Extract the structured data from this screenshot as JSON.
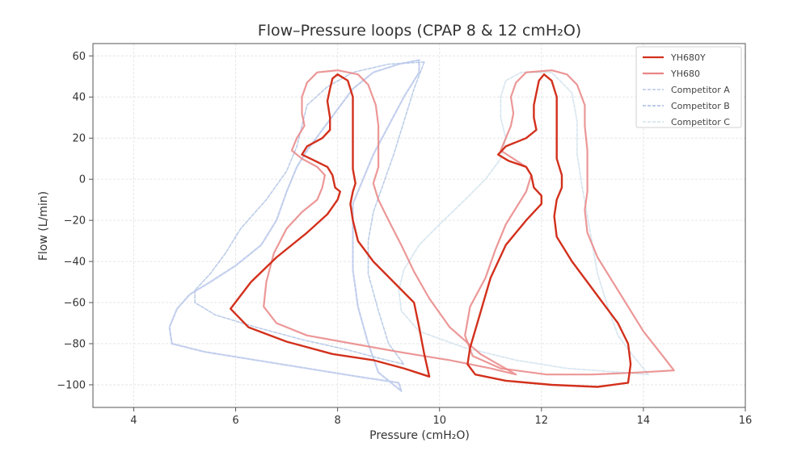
{
  "chart_data": {
    "type": "line",
    "title": "Flow–Pressure loops (CPAP 8 & 12 cmH₂O)",
    "xlabel": "Pressure (cmH₂O)",
    "ylabel": "Flow (L/min)",
    "xlim": [
      3.2,
      16.0
    ],
    "ylim": [
      -111,
      66
    ],
    "xticks": [
      4,
      6,
      8,
      10,
      12,
      14,
      16
    ],
    "yticks": [
      60,
      40,
      20,
      0,
      -20,
      -40,
      -60,
      -80,
      -100
    ],
    "grid": true,
    "legend_position": "top-right",
    "series": [
      {
        "name": "YH680Y",
        "color": "#d2301c",
        "style": "solid",
        "width": 2.4,
        "opacity": 1,
        "loops": [
          [
            [
              8.0,
              51
            ],
            [
              7.9,
              49
            ],
            [
              7.85,
              44
            ],
            [
              7.8,
              38
            ],
            [
              7.85,
              30
            ],
            [
              7.85,
              24
            ],
            [
              7.7,
              20
            ],
            [
              7.4,
              16
            ],
            [
              7.3,
              12
            ],
            [
              7.55,
              9
            ],
            [
              7.8,
              6
            ],
            [
              7.9,
              2
            ],
            [
              7.95,
              -4
            ],
            [
              8.05,
              -6
            ],
            [
              8.0,
              -10
            ],
            [
              7.8,
              -17
            ],
            [
              7.4,
              -26
            ],
            [
              6.8,
              -38
            ],
            [
              6.3,
              -50
            ],
            [
              5.9,
              -63
            ],
            [
              6.25,
              -72
            ],
            [
              7.0,
              -79
            ],
            [
              7.9,
              -85
            ],
            [
              8.7,
              -88
            ],
            [
              9.3,
              -92
            ],
            [
              9.8,
              -96
            ],
            [
              9.7,
              -85
            ],
            [
              9.6,
              -72
            ],
            [
              9.5,
              -60
            ],
            [
              9.1,
              -50
            ],
            [
              8.7,
              -40
            ],
            [
              8.4,
              -30
            ],
            [
              8.3,
              -20
            ],
            [
              8.25,
              -12
            ],
            [
              8.3,
              -6
            ],
            [
              8.35,
              -2
            ],
            [
              8.3,
              5
            ],
            [
              8.3,
              12
            ],
            [
              8.3,
              20
            ],
            [
              8.3,
              30
            ],
            [
              8.3,
              40
            ],
            [
              8.2,
              48
            ],
            [
              8.0,
              51
            ]
          ],
          [
            [
              12.05,
              51
            ],
            [
              11.95,
              48
            ],
            [
              11.9,
              42
            ],
            [
              11.85,
              36
            ],
            [
              11.85,
              30
            ],
            [
              11.9,
              24
            ],
            [
              11.7,
              20
            ],
            [
              11.3,
              16
            ],
            [
              11.15,
              12
            ],
            [
              11.35,
              9
            ],
            [
              11.7,
              6
            ],
            [
              11.8,
              2
            ],
            [
              11.85,
              -4
            ],
            [
              12.0,
              -8
            ],
            [
              12.0,
              -12
            ],
            [
              11.7,
              -20
            ],
            [
              11.3,
              -32
            ],
            [
              11.0,
              -48
            ],
            [
              10.8,
              -65
            ],
            [
              10.6,
              -82
            ],
            [
              10.55,
              -90
            ],
            [
              10.7,
              -95
            ],
            [
              11.3,
              -98
            ],
            [
              12.2,
              -100
            ],
            [
              13.1,
              -101
            ],
            [
              13.7,
              -99
            ],
            [
              13.75,
              -90
            ],
            [
              13.7,
              -80
            ],
            [
              13.5,
              -70
            ],
            [
              13.2,
              -60
            ],
            [
              12.9,
              -50
            ],
            [
              12.6,
              -40
            ],
            [
              12.3,
              -28
            ],
            [
              12.25,
              -18
            ],
            [
              12.3,
              -10
            ],
            [
              12.4,
              -4
            ],
            [
              12.4,
              2
            ],
            [
              12.3,
              10
            ],
            [
              12.3,
              20
            ],
            [
              12.3,
              30
            ],
            [
              12.3,
              40
            ],
            [
              12.2,
              48
            ],
            [
              12.05,
              51
            ]
          ]
        ]
      },
      {
        "name": "YH680",
        "color": "#e98585",
        "style": "solid",
        "width": 2.2,
        "opacity": 0.85,
        "loops": [
          [
            [
              8.0,
              53
            ],
            [
              7.6,
              52
            ],
            [
              7.4,
              47
            ],
            [
              7.3,
              40
            ],
            [
              7.3,
              32
            ],
            [
              7.35,
              26
            ],
            [
              7.2,
              20
            ],
            [
              7.1,
              14
            ],
            [
              7.3,
              10
            ],
            [
              7.6,
              6
            ],
            [
              7.75,
              2
            ],
            [
              7.7,
              -4
            ],
            [
              7.6,
              -10
            ],
            [
              7.3,
              -16
            ],
            [
              7.0,
              -24
            ],
            [
              6.75,
              -36
            ],
            [
              6.6,
              -50
            ],
            [
              6.55,
              -62
            ],
            [
              6.8,
              -70
            ],
            [
              7.4,
              -76
            ],
            [
              8.3,
              -80
            ],
            [
              9.2,
              -84
            ],
            [
              10.2,
              -88
            ],
            [
              11.0,
              -92
            ],
            [
              11.5,
              -95
            ],
            [
              10.8,
              -85
            ],
            [
              10.2,
              -72
            ],
            [
              9.8,
              -58
            ],
            [
              9.5,
              -45
            ],
            [
              9.25,
              -32
            ],
            [
              9.0,
              -20
            ],
            [
              8.8,
              -10
            ],
            [
              8.7,
              -2
            ],
            [
              8.8,
              6
            ],
            [
              8.8,
              16
            ],
            [
              8.8,
              26
            ],
            [
              8.75,
              36
            ],
            [
              8.6,
              46
            ],
            [
              8.4,
              51
            ],
            [
              8.0,
              53
            ]
          ],
          [
            [
              12.2,
              53
            ],
            [
              11.7,
              52
            ],
            [
              11.5,
              47
            ],
            [
              11.4,
              40
            ],
            [
              11.45,
              32
            ],
            [
              11.4,
              26
            ],
            [
              11.3,
              20
            ],
            [
              11.2,
              14
            ],
            [
              11.45,
              10
            ],
            [
              11.7,
              6
            ],
            [
              11.8,
              2
            ],
            [
              11.7,
              -6
            ],
            [
              11.5,
              -14
            ],
            [
              11.3,
              -22
            ],
            [
              11.1,
              -34
            ],
            [
              10.9,
              -48
            ],
            [
              10.6,
              -62
            ],
            [
              10.5,
              -76
            ],
            [
              10.65,
              -86
            ],
            [
              11.2,
              -92
            ],
            [
              12.1,
              -95
            ],
            [
              13.0,
              -95
            ],
            [
              13.9,
              -94
            ],
            [
              14.6,
              -93
            ],
            [
              14.35,
              -85
            ],
            [
              14.0,
              -74
            ],
            [
              13.7,
              -62
            ],
            [
              13.4,
              -50
            ],
            [
              13.1,
              -38
            ],
            [
              12.9,
              -26
            ],
            [
              12.85,
              -15
            ],
            [
              12.9,
              -6
            ],
            [
              12.9,
              4
            ],
            [
              12.9,
              14
            ],
            [
              12.85,
              26
            ],
            [
              12.85,
              36
            ],
            [
              12.7,
              46
            ],
            [
              12.5,
              51
            ],
            [
              12.2,
              53
            ]
          ]
        ]
      },
      {
        "name": "Competitor A",
        "color": "#b9c7ea",
        "style": "dashed",
        "width": 2.2,
        "opacity": 0.85,
        "loops": [
          [
            [
              9.6,
              58
            ],
            [
              9.2,
              56
            ],
            [
              8.7,
              52
            ],
            [
              8.3,
              44
            ],
            [
              8.0,
              34
            ],
            [
              7.7,
              24
            ],
            [
              7.4,
              14
            ],
            [
              7.2,
              6
            ],
            [
              7.0,
              -6
            ],
            [
              6.8,
              -20
            ],
            [
              6.5,
              -32
            ],
            [
              6.0,
              -42
            ],
            [
              5.5,
              -50
            ],
            [
              5.1,
              -56
            ],
            [
              4.85,
              -63
            ],
            [
              4.7,
              -72
            ],
            [
              4.75,
              -80
            ],
            [
              5.4,
              -84
            ],
            [
              6.4,
              -88
            ],
            [
              7.4,
              -92
            ],
            [
              8.4,
              -96
            ],
            [
              9.2,
              -99
            ],
            [
              9.25,
              -103
            ],
            [
              8.8,
              -94
            ],
            [
              8.6,
              -80
            ],
            [
              8.4,
              -62
            ],
            [
              8.3,
              -44
            ],
            [
              8.3,
              -26
            ],
            [
              8.3,
              -12
            ],
            [
              8.5,
              0
            ],
            [
              8.7,
              12
            ],
            [
              9.0,
              26
            ],
            [
              9.3,
              40
            ],
            [
              9.6,
              52
            ],
            [
              9.6,
              58
            ]
          ]
        ]
      },
      {
        "name": "Competitor B",
        "color": "#a6bce0",
        "style": "dashed",
        "width": 1.6,
        "opacity": 0.75,
        "loops": [
          [
            [
              9.7,
              57
            ],
            [
              9.0,
              56
            ],
            [
              8.3,
              52
            ],
            [
              7.8,
              45
            ],
            [
              7.4,
              36
            ],
            [
              7.3,
              26
            ],
            [
              7.2,
              16
            ],
            [
              7.0,
              4
            ],
            [
              6.6,
              -10
            ],
            [
              6.1,
              -24
            ],
            [
              5.8,
              -36
            ],
            [
              5.5,
              -46
            ],
            [
              5.2,
              -54
            ],
            [
              5.2,
              -60
            ],
            [
              5.6,
              -66
            ],
            [
              6.4,
              -72
            ],
            [
              7.3,
              -78
            ],
            [
              8.2,
              -83
            ],
            [
              8.8,
              -87
            ],
            [
              9.3,
              -90
            ],
            [
              9.0,
              -80
            ],
            [
              8.8,
              -64
            ],
            [
              8.6,
              -46
            ],
            [
              8.6,
              -30
            ],
            [
              8.7,
              -16
            ],
            [
              8.9,
              -2
            ],
            [
              9.1,
              12
            ],
            [
              9.3,
              28
            ],
            [
              9.5,
              44
            ],
            [
              9.7,
              57
            ]
          ]
        ]
      },
      {
        "name": "Competitor C",
        "color": "#cfe1ec",
        "style": "dashed",
        "width": 1.8,
        "opacity": 0.8,
        "loops": [
          [
            [
              12.2,
              52
            ],
            [
              11.6,
              52
            ],
            [
              11.3,
              48
            ],
            [
              11.2,
              40
            ],
            [
              11.2,
              30
            ],
            [
              11.3,
              20
            ],
            [
              11.2,
              10
            ],
            [
              10.9,
              0
            ],
            [
              10.5,
              -10
            ],
            [
              10.0,
              -22
            ],
            [
              9.6,
              -32
            ],
            [
              9.3,
              -44
            ],
            [
              9.2,
              -54
            ],
            [
              9.25,
              -64
            ],
            [
              9.6,
              -74
            ],
            [
              10.5,
              -82
            ],
            [
              11.5,
              -88
            ],
            [
              12.5,
              -92
            ],
            [
              13.6,
              -94
            ],
            [
              14.1,
              -95
            ],
            [
              13.8,
              -86
            ],
            [
              13.5,
              -76
            ],
            [
              13.3,
              -62
            ],
            [
              13.1,
              -46
            ],
            [
              13.0,
              -32
            ],
            [
              12.9,
              -18
            ],
            [
              12.8,
              -4
            ],
            [
              12.7,
              12
            ],
            [
              12.7,
              28
            ],
            [
              12.6,
              42
            ],
            [
              12.2,
              52
            ]
          ]
        ]
      }
    ]
  }
}
